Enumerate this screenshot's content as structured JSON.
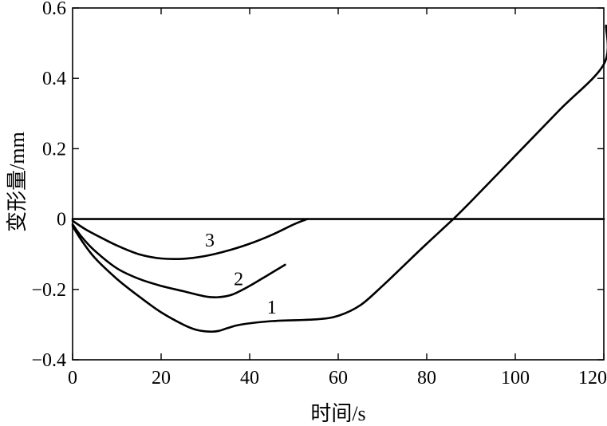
{
  "chart_data": {
    "type": "line",
    "xlabel": "时间/s",
    "ylabel": "变形量/mm",
    "xlim": [
      0,
      120
    ],
    "ylim": [
      -0.4,
      0.6
    ],
    "xticks": [
      0,
      20,
      40,
      60,
      80,
      100,
      120
    ],
    "yticks": [
      {
        "value": 0.6,
        "label": "0.6"
      },
      {
        "value": 0.4,
        "label": "0.4"
      },
      {
        "value": 0.2,
        "label": "0.2"
      },
      {
        "value": 0,
        "label": "0"
      },
      {
        "value": -0.2,
        "label": "−0.2"
      },
      {
        "value": -0.4,
        "label": "−0.4"
      }
    ],
    "grid": false,
    "reference_line_y": 0,
    "series": [
      {
        "name": "1",
        "label_at": [
          45,
          -0.25
        ],
        "points": [
          [
            0,
            -0.02
          ],
          [
            2,
            -0.06
          ],
          [
            5,
            -0.11
          ],
          [
            10,
            -0.17
          ],
          [
            15,
            -0.22
          ],
          [
            20,
            -0.265
          ],
          [
            25,
            -0.3
          ],
          [
            28,
            -0.315
          ],
          [
            31,
            -0.32
          ],
          [
            33,
            -0.318
          ],
          [
            35,
            -0.31
          ],
          [
            38,
            -0.3
          ],
          [
            45,
            -0.29
          ],
          [
            55,
            -0.285
          ],
          [
            60,
            -0.275
          ],
          [
            65,
            -0.245
          ],
          [
            70,
            -0.19
          ],
          [
            75,
            -0.13
          ],
          [
            80,
            -0.07
          ],
          [
            86,
            0.0
          ],
          [
            90,
            0.05
          ],
          [
            100,
            0.18
          ],
          [
            110,
            0.31
          ],
          [
            120,
            0.44
          ],
          [
            120.5,
            0.55
          ]
        ]
      },
      {
        "name": "2",
        "label_at": [
          37.5,
          -0.17
        ],
        "points": [
          [
            0,
            -0.015
          ],
          [
            2,
            -0.05
          ],
          [
            5,
            -0.09
          ],
          [
            10,
            -0.14
          ],
          [
            15,
            -0.17
          ],
          [
            20,
            -0.19
          ],
          [
            25,
            -0.205
          ],
          [
            30,
            -0.22
          ],
          [
            33,
            -0.222
          ],
          [
            36,
            -0.215
          ],
          [
            40,
            -0.19
          ],
          [
            44,
            -0.16
          ],
          [
            48,
            -0.13
          ]
        ]
      },
      {
        "name": "3",
        "label_at": [
          31,
          -0.06
        ],
        "points": [
          [
            0,
            -0.005
          ],
          [
            3,
            -0.03
          ],
          [
            6,
            -0.05
          ],
          [
            10,
            -0.075
          ],
          [
            15,
            -0.1
          ],
          [
            20,
            -0.112
          ],
          [
            25,
            -0.113
          ],
          [
            30,
            -0.105
          ],
          [
            35,
            -0.09
          ],
          [
            40,
            -0.07
          ],
          [
            45,
            -0.045
          ],
          [
            50,
            -0.015
          ],
          [
            53,
            0.0
          ]
        ]
      }
    ]
  }
}
